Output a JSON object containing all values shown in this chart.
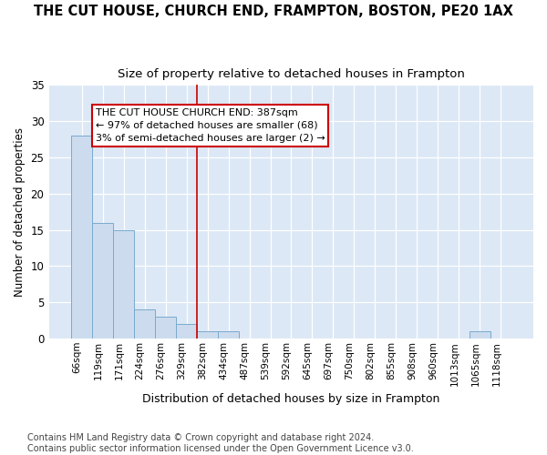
{
  "title": "THE CUT HOUSE, CHURCH END, FRAMPTON, BOSTON, PE20 1AX",
  "subtitle": "Size of property relative to detached houses in Frampton",
  "xlabel": "Distribution of detached houses by size in Frampton",
  "ylabel": "Number of detached properties",
  "bin_labels": [
    "66sqm",
    "119sqm",
    "171sqm",
    "224sqm",
    "276sqm",
    "329sqm",
    "382sqm",
    "434sqm",
    "487sqm",
    "539sqm",
    "592sqm",
    "645sqm",
    "697sqm",
    "750sqm",
    "802sqm",
    "855sqm",
    "908sqm",
    "960sqm",
    "1013sqm",
    "1065sqm",
    "1118sqm"
  ],
  "bar_values": [
    28,
    16,
    15,
    4,
    3,
    2,
    1,
    1,
    0,
    0,
    0,
    0,
    0,
    0,
    0,
    0,
    0,
    0,
    0,
    1,
    0
  ],
  "bar_color": "#ccdcee",
  "bar_edgecolor": "#7aaace",
  "vline_bin_index": 6,
  "vline_color": "#cc0000",
  "annotation_line1": "THE CUT HOUSE CHURCH END: 387sqm",
  "annotation_line2": "← 97% of detached houses are smaller (68)",
  "annotation_line3": "3% of semi-detached houses are larger (2) →",
  "annotation_box_facecolor": "#ffffff",
  "annotation_box_edgecolor": "#cc0000",
  "ylim": [
    0,
    35
  ],
  "yticks": [
    0,
    5,
    10,
    15,
    20,
    25,
    30,
    35
  ],
  "footer_text": "Contains HM Land Registry data © Crown copyright and database right 2024.\nContains public sector information licensed under the Open Government Licence v3.0.",
  "bg_color": "#ffffff",
  "plot_bg_color": "#dce8f5"
}
